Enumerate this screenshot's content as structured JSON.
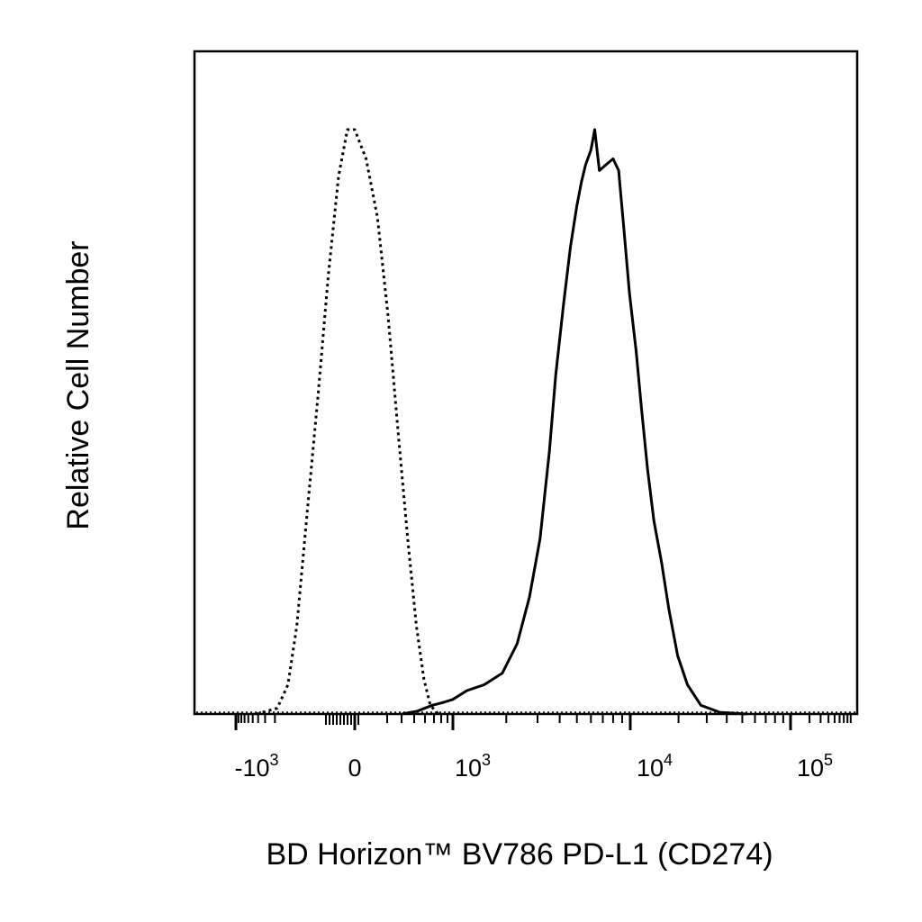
{
  "chart_data": {
    "type": "line",
    "title": "",
    "xlabel": "BD Horizon™ BV786 PD-L1 (CD274)",
    "ylabel": "Relative Cell Number",
    "x_scale": "biexponential",
    "xlim": [
      -2000,
      200000
    ],
    "ylim": [
      0,
      1.1
    ],
    "grid": false,
    "legend": "none",
    "x_ticks": [
      {
        "value": -1000,
        "base": "-10",
        "exp": "3"
      },
      {
        "value": 0,
        "base": "0",
        "exp": ""
      },
      {
        "value": 1000,
        "base": "10",
        "exp": "3"
      },
      {
        "value": 10000,
        "base": "10",
        "exp": "4"
      },
      {
        "value": 100000,
        "base": "10",
        "exp": "5"
      }
    ],
    "series": [
      {
        "style": "dotted",
        "color": "#000000",
        "points": [
          [
            -1000,
            0.0
          ],
          [
            -600,
            0.01
          ],
          [
            -450,
            0.05
          ],
          [
            -350,
            0.15
          ],
          [
            -250,
            0.35
          ],
          [
            -170,
            0.55
          ],
          [
            -110,
            0.75
          ],
          [
            -60,
            0.92
          ],
          [
            -25,
            1.0
          ],
          [
            0,
            1.0
          ],
          [
            40,
            0.95
          ],
          [
            90,
            0.85
          ],
          [
            150,
            0.68
          ],
          [
            220,
            0.48
          ],
          [
            300,
            0.3
          ],
          [
            390,
            0.15
          ],
          [
            480,
            0.06
          ],
          [
            570,
            0.015
          ],
          [
            700,
            0.0
          ]
        ]
      },
      {
        "style": "solid",
        "color": "#000000",
        "points": [
          [
            250,
            0.0
          ],
          [
            400,
            0.005
          ],
          [
            600,
            0.015
          ],
          [
            800,
            0.02
          ],
          [
            1000,
            0.025
          ],
          [
            1200,
            0.04
          ],
          [
            1500,
            0.05
          ],
          [
            1900,
            0.07
          ],
          [
            2300,
            0.12
          ],
          [
            2700,
            0.2
          ],
          [
            3100,
            0.3
          ],
          [
            3500,
            0.45
          ],
          [
            3800,
            0.58
          ],
          [
            4200,
            0.7
          ],
          [
            4600,
            0.8
          ],
          [
            5000,
            0.87
          ],
          [
            5300,
            0.91
          ],
          [
            5600,
            0.94
          ],
          [
            6000,
            0.965
          ],
          [
            6300,
            1.0
          ],
          [
            6700,
            0.93
          ],
          [
            7300,
            0.94
          ],
          [
            8000,
            0.95
          ],
          [
            8600,
            0.93
          ],
          [
            9200,
            0.83
          ],
          [
            9900,
            0.72
          ],
          [
            10800,
            0.62
          ],
          [
            11500,
            0.53
          ],
          [
            12500,
            0.42
          ],
          [
            13600,
            0.33
          ],
          [
            15000,
            0.26
          ],
          [
            16500,
            0.18
          ],
          [
            18500,
            0.1
          ],
          [
            21000,
            0.05
          ],
          [
            25000,
            0.015
          ],
          [
            32000,
            0.003
          ],
          [
            45000,
            0.0
          ]
        ]
      }
    ]
  }
}
